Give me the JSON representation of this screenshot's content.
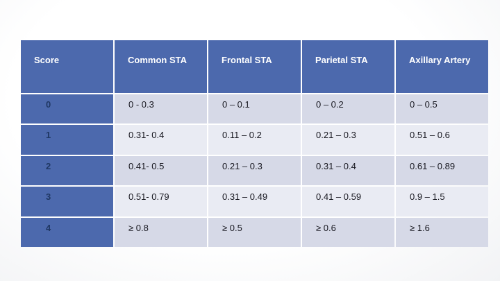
{
  "slide": {
    "background_color": "#ffffff"
  },
  "table": {
    "colors": {
      "header_bg": "#4c69ad",
      "header_text": "#ffffff",
      "score_col_bg": "#4c69ad",
      "score_text": "#203864",
      "row_band_a": "#d6d9e7",
      "row_band_b": "#e9ebf3",
      "body_text": "#17171f",
      "divider": "#ffffff"
    },
    "columns": [
      "Score",
      "Common STA",
      "Frontal STA",
      "Parietal STA",
      "Axillary Artery"
    ],
    "rows": [
      {
        "score": "0",
        "values": [
          "0 - 0.3",
          "0 – 0.1",
          "0 – 0.2",
          "0 – 0.5"
        ]
      },
      {
        "score": "1",
        "values": [
          "0.31- 0.4",
          "0.11 – 0.2",
          "0.21 – 0.3",
          "0.51 – 0.6"
        ]
      },
      {
        "score": "2",
        "values": [
          "0.41- 0.5",
          "0.21 – 0.3",
          "0.31 – 0.4",
          "0.61 – 0.89"
        ]
      },
      {
        "score": "3",
        "values": [
          "0.51- 0.79",
          "0.31 – 0.49",
          "0.41 – 0.59",
          "0.9 – 1.5"
        ]
      },
      {
        "score": "4",
        "values": [
          "≥ 0.8",
          "≥ 0.5",
          "≥ 0.6",
          "≥ 1.6"
        ]
      }
    ]
  }
}
